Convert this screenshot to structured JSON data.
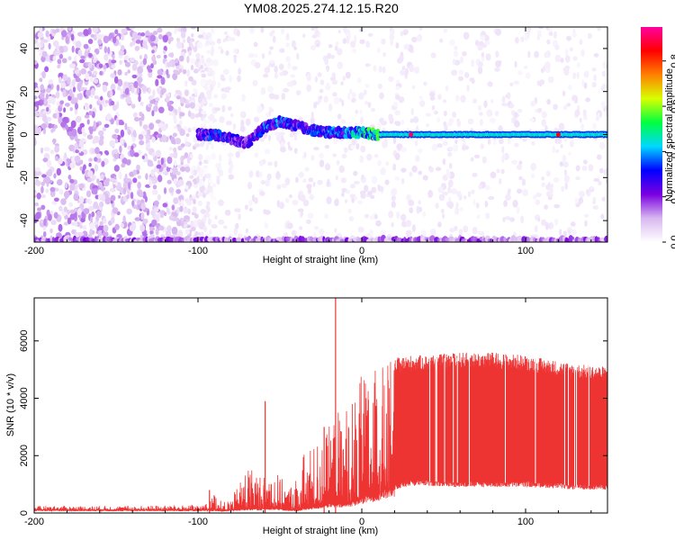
{
  "title": "YM08.2025.274.12.15.R20",
  "chart_data": [
    {
      "type": "heatmap",
      "xlabel": "Height of straight line (km)",
      "ylabel": "Frequency (Hz)",
      "xlim": [
        -200,
        150
      ],
      "ylim": [
        -50,
        50
      ],
      "x_ticks": [
        -200,
        -100,
        0,
        100
      ],
      "y_ticks": [
        -40,
        -20,
        0,
        20,
        40
      ],
      "x_tick_labels": [
        "-200",
        "-100",
        "0",
        "100"
      ],
      "y_tick_labels": [
        "-40",
        "-20",
        "0",
        "20",
        "40"
      ],
      "colorbar": {
        "label": "Normalized spectral amplitude",
        "range": [
          0,
          0.95
        ],
        "ticks": [
          0,
          0.2,
          0.4,
          0.6,
          0.8
        ],
        "tick_labels": [
          "0.0",
          "0.2",
          "0.4",
          "0.6",
          "0.8"
        ],
        "colormap": [
          "#ffffff",
          "#d8b8f0",
          "#7a00e0",
          "#0000ff",
          "#00d8ff",
          "#00ff40",
          "#d8ff00",
          "#ff8000",
          "#ff0000",
          "#ff00a0"
        ]
      },
      "features": [
        {
          "name": "noise",
          "x_range": [
            -200,
            -90
          ],
          "freq_range": [
            -50,
            50
          ],
          "amplitude": 0.1
        },
        {
          "name": "faint-noise",
          "x_range": [
            -90,
            150
          ],
          "freq_range": [
            -50,
            50
          ],
          "amplitude": 0.03
        },
        {
          "name": "ridge",
          "x": [
            -100,
            -90,
            -80,
            -70,
            -60,
            -50,
            -40,
            -30,
            -20,
            -10,
            0,
            10,
            50,
            100,
            150
          ],
          "freq": [
            0,
            0,
            -2,
            -4,
            3,
            6,
            4,
            2,
            1,
            1,
            1,
            0,
            0,
            0,
            0
          ],
          "amplitude": [
            0.25,
            0.28,
            0.25,
            0.2,
            0.3,
            0.3,
            0.28,
            0.28,
            0.3,
            0.32,
            0.4,
            0.45,
            0.45,
            0.45,
            0.45
          ]
        },
        {
          "name": "hot-spots",
          "x": [
            30,
            120
          ],
          "freq": [
            0,
            0
          ],
          "amplitude": [
            0.9,
            0.85
          ]
        },
        {
          "name": "bottom-edge",
          "x_range": [
            -200,
            150
          ],
          "freq": -49,
          "amplitude": 0.15
        }
      ]
    },
    {
      "type": "area",
      "xlabel": "Height of straight line (km)",
      "ylabel": "SNR (10 * v/v)",
      "xlim": [
        -200,
        150
      ],
      "ylim": [
        0,
        7500
      ],
      "x_ticks": [
        -200,
        -100,
        0,
        100
      ],
      "y_ticks": [
        0,
        2000,
        4000,
        6000
      ],
      "x_tick_labels": [
        "-200",
        "-100",
        "0",
        "100"
      ],
      "y_tick_labels": [
        "0",
        "2000",
        "4000",
        "6000"
      ],
      "color": "#ee3333",
      "envelope": {
        "x": [
          -200,
          -150,
          -100,
          -93,
          -90,
          -85,
          -80,
          -75,
          -70,
          -60,
          -55,
          -50,
          -45,
          -40,
          -35,
          -30,
          -20,
          -16,
          -10,
          -5,
          0,
          10,
          20,
          30,
          40,
          60,
          80,
          100,
          120,
          130,
          150
        ],
        "lower": [
          100,
          100,
          100,
          100,
          100,
          80,
          100,
          120,
          150,
          150,
          180,
          150,
          100,
          100,
          150,
          200,
          300,
          300,
          300,
          400,
          500,
          700,
          900,
          1050,
          1050,
          1000,
          1000,
          1000,
          950,
          900,
          900
        ],
        "upper": [
          250,
          250,
          280,
          350,
          750,
          350,
          500,
          1000,
          1800,
          1300,
          1600,
          1300,
          900,
          1300,
          2200,
          2400,
          3000,
          3600,
          3800,
          4300,
          4800,
          5100,
          5400,
          5500,
          5500,
          5600,
          5600,
          5500,
          5300,
          5200,
          5100
        ]
      },
      "spikes": [
        {
          "x": -93,
          "y": 800
        },
        {
          "x": -59,
          "y": 3900
        },
        {
          "x": -23,
          "y": 3000
        },
        {
          "x": -16,
          "y": 7500
        }
      ]
    }
  ]
}
